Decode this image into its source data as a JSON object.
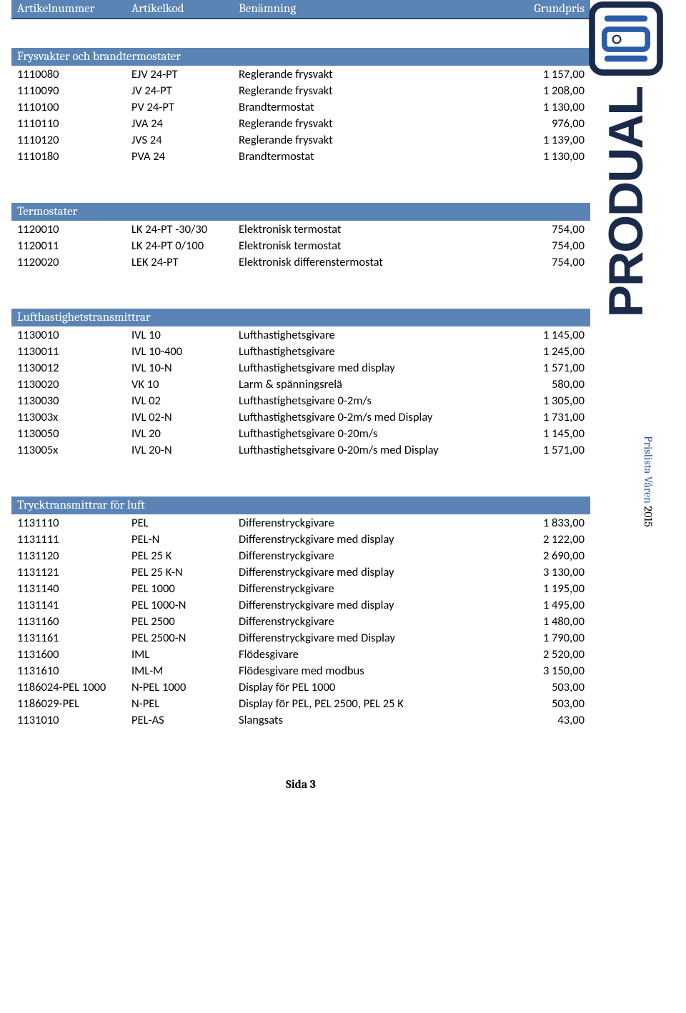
{
  "header": {
    "artnr": "Artikelnummer",
    "artkod": "Artikelkod",
    "benamn": "Benämning",
    "pris": "Grundpris"
  },
  "brand": {
    "name": "PRODUAL",
    "logo_colors": {
      "primary": "#2a5ca8",
      "dark": "#1a2b4a",
      "bg": "#ffffff"
    }
  },
  "side_note": {
    "text": "Prislista Våren",
    "year": "2015",
    "color": "#2a5ca8"
  },
  "sections": [
    {
      "title": "Frysvakter och brandtermostater",
      "rows": [
        {
          "artnr": "1110080",
          "artkod": "EJV 24-PT",
          "benamn": "Reglerande frysvakt",
          "pris": "1 157,00"
        },
        {
          "artnr": "1110090",
          "artkod": "JV 24-PT",
          "benamn": "Reglerande frysvakt",
          "pris": "1 208,00"
        },
        {
          "artnr": "1110100",
          "artkod": "PV 24-PT",
          "benamn": "Brandtermostat",
          "pris": "1 130,00"
        },
        {
          "artnr": "1110110",
          "artkod": "JVA 24",
          "benamn": "Reglerande frysvakt",
          "pris": "976,00"
        },
        {
          "artnr": "1110120",
          "artkod": "JVS 24",
          "benamn": "Reglerande frysvakt",
          "pris": "1 139,00"
        },
        {
          "artnr": "1110180",
          "artkod": "PVA 24",
          "benamn": "Brandtermostat",
          "pris": "1 130,00"
        }
      ]
    },
    {
      "title": "Termostater",
      "rows": [
        {
          "artnr": "1120010",
          "artkod": "LK 24-PT -30/30",
          "benamn": "Elektronisk termostat",
          "pris": "754,00"
        },
        {
          "artnr": "1120011",
          "artkod": "LK 24-PT 0/100",
          "benamn": "Elektronisk termostat",
          "pris": "754,00"
        },
        {
          "artnr": "1120020",
          "artkod": "LEK 24-PT",
          "benamn": "Elektronisk differenstermostat",
          "pris": "754,00"
        }
      ]
    },
    {
      "title": "Lufthastighetstransmittrar",
      "rows": [
        {
          "artnr": "1130010",
          "artkod": "IVL 10",
          "benamn": "Lufthastighetsgivare",
          "pris": "1 145,00"
        },
        {
          "artnr": "1130011",
          "artkod": "IVL 10-400",
          "benamn": "Lufthastighetsgivare",
          "pris": "1 245,00"
        },
        {
          "artnr": "1130012",
          "artkod": "IVL 10-N",
          "benamn": "Lufthastighetsgivare med display",
          "pris": "1 571,00"
        },
        {
          "artnr": "1130020",
          "artkod": "VK 10",
          "benamn": "Larm & spänningsrelä",
          "pris": "580,00"
        },
        {
          "artnr": "1130030",
          "artkod": "IVL 02",
          "benamn": "Lufthastighetsgivare 0-2m/s",
          "pris": "1 305,00"
        },
        {
          "artnr": "113003x",
          "artkod": "IVL 02-N",
          "benamn": "Lufthastighetsgivare 0-2m/s med Display",
          "pris": "1 731,00"
        },
        {
          "artnr": "1130050",
          "artkod": "IVL 20",
          "benamn": "Lufthastighetsgivare 0-20m/s",
          "pris": "1 145,00"
        },
        {
          "artnr": "113005x",
          "artkod": "IVL 20-N",
          "benamn": "Lufthastighetsgivare 0-20m/s med Display",
          "pris": "1 571,00"
        }
      ]
    },
    {
      "title": "Trycktransmittrar för luft",
      "rows": [
        {
          "artnr": "1131110",
          "artkod": "PEL",
          "benamn": "Differenstryckgivare",
          "pris": "1 833,00"
        },
        {
          "artnr": "1131111",
          "artkod": "PEL-N",
          "benamn": "Differenstryckgivare med display",
          "pris": "2 122,00"
        },
        {
          "artnr": "1131120",
          "artkod": "PEL 25 K",
          "benamn": "Differenstryckgivare",
          "pris": "2 690,00"
        },
        {
          "artnr": "1131121",
          "artkod": "PEL 25 K-N",
          "benamn": "Differenstryckgivare med display",
          "pris": "3 130,00"
        },
        {
          "artnr": "1131140",
          "artkod": "PEL 1000",
          "benamn": "Differenstryckgivare",
          "pris": "1 195,00"
        },
        {
          "artnr": "1131141",
          "artkod": "PEL 1000-N",
          "benamn": "Differenstryckgivare med display",
          "pris": "1 495,00"
        },
        {
          "artnr": "1131160",
          "artkod": "PEL 2500",
          "benamn": "Differenstryckgivare",
          "pris": "1 480,00"
        },
        {
          "artnr": "1131161",
          "artkod": "PEL 2500-N",
          "benamn": "Differenstryckgivare med Display",
          "pris": "1 790,00"
        },
        {
          "artnr": "1131600",
          "artkod": "IML",
          "benamn": "Flödesgivare",
          "pris": "2 520,00"
        },
        {
          "artnr": "1131610",
          "artkod": "IML-M",
          "benamn": "Flödesgivare med modbus",
          "pris": "3 150,00"
        },
        {
          "artnr": "1186024-PEL 1000",
          "artkod": "N-PEL 1000",
          "benamn": "Display för PEL 1000",
          "pris": "503,00"
        },
        {
          "artnr": "1186029-PEL",
          "artkod": "N-PEL",
          "benamn": "Display för PEL, PEL 2500, PEL 25 K",
          "pris": "503,00"
        },
        {
          "artnr": "1131010",
          "artkod": "PEL-AS",
          "benamn": "Slangsats",
          "pris": "43,00"
        }
      ]
    }
  ],
  "footer": {
    "text": "Sida 3"
  },
  "styling": {
    "header_bg": "#5b84b6",
    "header_text": "#ffffff",
    "header_border": "#27496d",
    "body_font": "Cambria",
    "data_font": "Calibri",
    "base_fontsize_pt": 12
  }
}
